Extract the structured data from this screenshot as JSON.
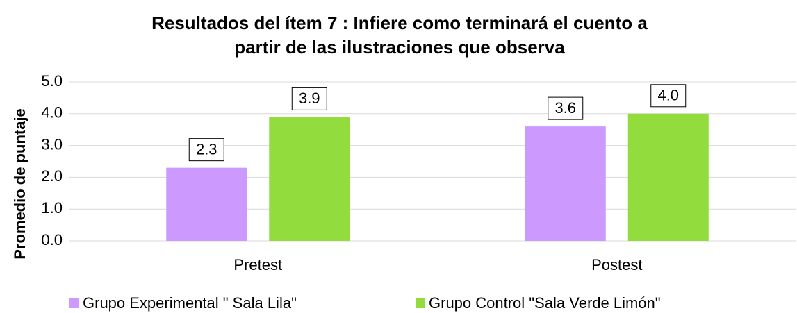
{
  "chart_data": {
    "type": "bar",
    "title": "Resultados del ítem 7 : Infiere como terminará el cuento a partir de las ilustraciones que observa",
    "y_label": "Promedio de puntaje",
    "categories": [
      "Pretest",
      "Postest"
    ],
    "series": [
      {
        "name": "Grupo Experimental \" Sala Lila\"",
        "color": "#cc99ff",
        "values": [
          2.3,
          3.6
        ],
        "value_labels": [
          "2.3",
          "3.6"
        ]
      },
      {
        "name": "Grupo Control \"Sala Verde Limón\"",
        "color": "#92dc3e",
        "values": [
          3.9,
          4
        ],
        "value_labels": [
          "3.9",
          "4.0"
        ]
      }
    ],
    "ylim": [
      0,
      5
    ],
    "yticks": [
      {
        "value": 0,
        "label": "0.0"
      },
      {
        "value": 1,
        "label": "1.0"
      },
      {
        "value": 2,
        "label": "2.0"
      },
      {
        "value": 3,
        "label": "3.0"
      },
      {
        "value": 4,
        "label": "4.0"
      },
      {
        "value": 5,
        "label": "5.0"
      }
    ],
    "grid": true,
    "legend": "bottom"
  }
}
